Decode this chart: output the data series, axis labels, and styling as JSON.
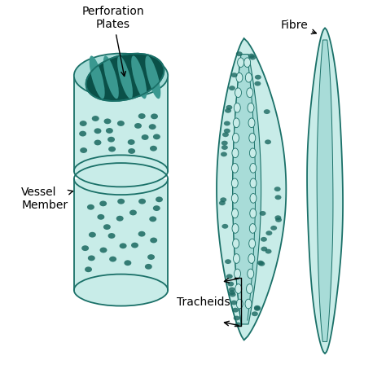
{
  "background_color": "#ffffff",
  "teal_fill": "#5cb8b0",
  "teal_dark": "#1a7068",
  "teal_mid": "#3a9890",
  "teal_light": "#90d8d0",
  "teal_very_light": "#c8ece8",
  "teal_bg": "#a8dcd8",
  "dot_color": "#1a6860",
  "perf_dark": "#0a5048",
  "labels": {
    "perforation_plates": "Perforation\nPlates",
    "vessel_member": "Vessel\nMember",
    "tracheids": "Tracheids",
    "fibre": "Fibre"
  }
}
